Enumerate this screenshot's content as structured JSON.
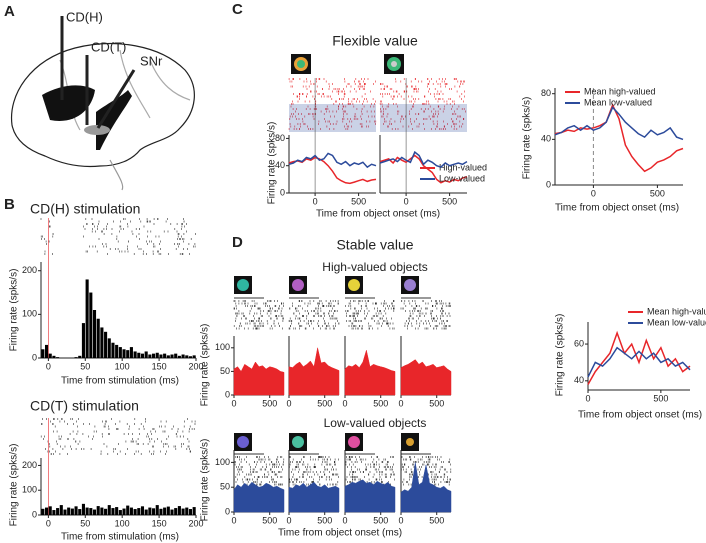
{
  "figure": {
    "panel_labels": [
      "A",
      "B",
      "C",
      "D"
    ],
    "brain_labels": [
      "CD(H)",
      "CD(T)",
      "SNr"
    ],
    "flexible_title": "Flexible value",
    "stable_title": "Stable value",
    "high_objects": "High-valued objects",
    "low_objects": "Low-valued objects"
  },
  "chart_data": [
    {
      "type": "histogram",
      "title": "CD(H) stimulation",
      "xlabel": "Time from stimulation (ms)",
      "ylabel": "Firing rate (spks/s)",
      "color": "#000000",
      "bins": [
        -10,
        -5,
        0,
        5,
        10,
        15,
        20,
        25,
        30,
        35,
        40,
        45,
        50,
        55,
        60,
        65,
        70,
        75,
        80,
        85,
        90,
        95,
        100,
        105,
        110,
        115,
        120,
        125,
        130,
        135,
        140,
        145,
        150,
        155,
        160,
        165,
        170,
        175,
        180,
        185,
        190,
        195,
        200
      ],
      "values": [
        20,
        30,
        10,
        5,
        2,
        0,
        0,
        0,
        0,
        2,
        5,
        80,
        180,
        150,
        110,
        90,
        70,
        60,
        45,
        35,
        30,
        25,
        20,
        18,
        25,
        15,
        12,
        10,
        15,
        8,
        10,
        12,
        8,
        10,
        6,
        8,
        10,
        5,
        8,
        6,
        4,
        6
      ],
      "xlim": [
        -10,
        200
      ],
      "xticks": [
        0,
        50,
        100,
        150,
        200
      ],
      "ylim": [
        0,
        220
      ],
      "yticks": [
        0,
        100,
        200
      ]
    },
    {
      "type": "histogram",
      "title": "CD(T) stimulation",
      "xlabel": "Time from stimulation (ms)",
      "ylabel": "Firing rate (spks/s)",
      "color": "#000000",
      "bins": [
        -10,
        -5,
        0,
        5,
        10,
        15,
        20,
        25,
        30,
        35,
        40,
        45,
        50,
        55,
        60,
        65,
        70,
        75,
        80,
        85,
        90,
        95,
        100,
        105,
        110,
        115,
        120,
        125,
        130,
        135,
        140,
        145,
        150,
        155,
        160,
        165,
        170,
        175,
        180,
        185,
        190,
        195,
        200
      ],
      "values": [
        25,
        30,
        35,
        20,
        28,
        40,
        22,
        30,
        26,
        35,
        24,
        45,
        30,
        28,
        22,
        36,
        30,
        25,
        40,
        28,
        32,
        20,
        26,
        38,
        30,
        24,
        28,
        35,
        22,
        30,
        27,
        40,
        25,
        30,
        34,
        22,
        28,
        36,
        26,
        30,
        24,
        32
      ],
      "xlim": [
        -10,
        200
      ],
      "xticks": [
        0,
        50,
        100,
        150,
        200
      ],
      "ylim": [
        0,
        230
      ],
      "yticks": [
        0,
        100,
        200
      ]
    },
    {
      "type": "line",
      "xlabel": "Time from object onset (ms)",
      "ylabel": "Firing rate (spks/s)",
      "x": [
        -300,
        -250,
        -200,
        -150,
        -100,
        -50,
        0,
        50,
        100,
        150,
        200,
        250,
        300,
        350,
        400,
        450,
        500,
        550,
        600,
        650,
        700
      ],
      "series": [
        {
          "color": "#e8262a",
          "values": [
            44,
            46,
            47,
            45,
            50,
            48,
            52,
            50,
            46,
            40,
            32,
            22,
            18,
            15,
            14,
            16,
            18,
            20,
            17,
            19,
            20
          ]
        },
        {
          "color": "#2c4b9b",
          "values": [
            42,
            44,
            48,
            46,
            52,
            50,
            55,
            48,
            50,
            58,
            55,
            45,
            42,
            46,
            40,
            44,
            42,
            45,
            38,
            42,
            40
          ]
        }
      ],
      "xlim": [
        -300,
        700
      ],
      "xticks": [
        0,
        500
      ],
      "ylim": [
        0,
        85
      ],
      "yticks": [
        0,
        40,
        80
      ]
    },
    {
      "type": "line",
      "x": [
        -300,
        -250,
        -200,
        -150,
        -100,
        -50,
        0,
        50,
        100,
        150,
        200,
        250,
        300,
        350,
        400,
        450,
        500,
        550,
        600,
        650,
        700
      ],
      "series": [
        {
          "name": "High-valued",
          "color": "#e8262a",
          "values": [
            46,
            48,
            50,
            44,
            52,
            48,
            45,
            50,
            55,
            50,
            40,
            35,
            30,
            20,
            15,
            18,
            16,
            20,
            18,
            22,
            24
          ]
        },
        {
          "name": "Low-valued",
          "color": "#2c4b9b",
          "values": [
            44,
            46,
            48,
            50,
            46,
            52,
            48,
            45,
            60,
            55,
            42,
            48,
            45,
            40,
            38,
            44,
            40,
            42,
            44,
            42,
            46
          ]
        }
      ],
      "xlim": [
        -300,
        700
      ],
      "xticks": [
        0,
        500
      ],
      "ylim": [
        0,
        85
      ]
    },
    {
      "type": "line",
      "xlabel": "Time from object onset (ms)",
      "ylabel": "Firing rate (spks/s)",
      "x": [
        -300,
        -250,
        -200,
        -150,
        -100,
        -50,
        0,
        50,
        100,
        150,
        200,
        250,
        300,
        350,
        400,
        450,
        500,
        550,
        600,
        650,
        700
      ],
      "series": [
        {
          "name": "Mean high-valued",
          "color": "#e8262a",
          "values": [
            45,
            46,
            48,
            47,
            50,
            49,
            50,
            52,
            55,
            70,
            58,
            35,
            25,
            18,
            12,
            15,
            20,
            22,
            25,
            30,
            32
          ]
        },
        {
          "name": "Mean low-valued",
          "color": "#2c4b9b",
          "values": [
            44,
            46,
            50,
            52,
            48,
            52,
            48,
            50,
            55,
            68,
            62,
            55,
            50,
            45,
            42,
            48,
            44,
            46,
            50,
            42,
            40
          ]
        }
      ],
      "xlim": [
        -300,
        700
      ],
      "xticks": [
        0,
        500
      ],
      "ylim": [
        0,
        85
      ],
      "yticks": [
        0,
        40,
        80
      ]
    },
    {
      "type": "area",
      "ylabel": "Firing rate (spks/s)",
      "color": "#e8262a",
      "x": [
        0,
        50,
        100,
        150,
        200,
        250,
        300,
        350,
        400,
        450,
        500,
        550,
        600,
        650,
        700
      ],
      "values": [
        55,
        60,
        50,
        65,
        60,
        55,
        70,
        60,
        62,
        55,
        60,
        58,
        55,
        50,
        48
      ],
      "xlim": [
        0,
        700
      ],
      "xticks": [
        0,
        500
      ],
      "ylim": [
        0,
        125
      ],
      "yticks": [
        0,
        50,
        100
      ]
    },
    {
      "type": "area",
      "color": "#e8262a",
      "x": [
        0,
        50,
        100,
        150,
        200,
        250,
        300,
        350,
        400,
        450,
        500,
        550,
        600,
        650,
        700
      ],
      "values": [
        60,
        58,
        65,
        70,
        60,
        65,
        72,
        60,
        100,
        68,
        70,
        62,
        58,
        55,
        52
      ],
      "xlim": [
        0,
        700
      ],
      "xticks": [
        0,
        500
      ],
      "ylim": [
        0,
        125
      ]
    },
    {
      "type": "area",
      "color": "#e8262a",
      "x": [
        0,
        50,
        100,
        150,
        200,
        250,
        300,
        350,
        400,
        450,
        500,
        550,
        600,
        650,
        700
      ],
      "values": [
        55,
        62,
        60,
        65,
        58,
        70,
        95,
        60,
        65,
        62,
        60,
        58,
        55,
        52,
        50
      ],
      "xlim": [
        0,
        700
      ],
      "xticks": [
        0,
        500
      ],
      "ylim": [
        0,
        125
      ]
    },
    {
      "type": "area",
      "color": "#e8262a",
      "x": [
        0,
        50,
        100,
        150,
        200,
        250,
        300,
        350,
        400,
        450,
        500,
        550,
        600,
        650,
        700
      ],
      "values": [
        58,
        62,
        65,
        70,
        75,
        65,
        70,
        60,
        62,
        65,
        58,
        60,
        62,
        55,
        50
      ],
      "xlim": [
        0,
        700
      ],
      "xticks": [
        0,
        500
      ],
      "ylim": [
        0,
        125
      ]
    },
    {
      "type": "area",
      "ylabel": "Firing rate (spks/s)",
      "xlabel": "Time from object onset (ms)",
      "color": "#2c4b9b",
      "x": [
        0,
        50,
        100,
        150,
        200,
        250,
        300,
        350,
        400,
        450,
        500,
        550,
        600,
        650,
        700
      ],
      "values": [
        45,
        55,
        50,
        58,
        52,
        60,
        55,
        50,
        52,
        58,
        55,
        50,
        52,
        48,
        45
      ],
      "xlim": [
        0,
        700
      ],
      "xticks": [
        0,
        500
      ],
      "ylim": [
        0,
        125
      ],
      "yticks": [
        0,
        50,
        100
      ]
    },
    {
      "type": "area",
      "color": "#2c4b9b",
      "x": [
        0,
        50,
        100,
        150,
        200,
        250,
        300,
        350,
        400,
        450,
        500,
        550,
        600,
        650,
        700
      ],
      "values": [
        50,
        48,
        55,
        52,
        58,
        50,
        55,
        60,
        52,
        50,
        55,
        48,
        50,
        52,
        48
      ],
      "xlim": [
        0,
        700
      ],
      "xticks": [
        0,
        500
      ],
      "ylim": [
        0,
        125
      ]
    },
    {
      "type": "area",
      "color": "#2c4b9b",
      "x": [
        0,
        50,
        100,
        150,
        200,
        250,
        300,
        350,
        400,
        450,
        500,
        550,
        600,
        650,
        700
      ],
      "values": [
        52,
        55,
        60,
        58,
        62,
        65,
        58,
        60,
        55,
        62,
        58,
        55,
        60,
        52,
        50
      ],
      "xlim": [
        0,
        700
      ],
      "xticks": [
        0,
        500
      ],
      "ylim": [
        0,
        125
      ]
    },
    {
      "type": "area",
      "color": "#2c4b9b",
      "x": [
        0,
        50,
        100,
        150,
        200,
        250,
        300,
        350,
        400,
        450,
        500,
        550,
        600,
        650,
        700
      ],
      "values": [
        40,
        45,
        42,
        50,
        100,
        55,
        60,
        95,
        58,
        55,
        50,
        48,
        52,
        45,
        42
      ],
      "xlim": [
        0,
        700
      ],
      "xticks": [
        0,
        500
      ],
      "ylim": [
        0,
        125
      ]
    },
    {
      "type": "line",
      "xlabel": "Time from object onset (ms)",
      "ylabel": "Firing rate (spks/s)",
      "x": [
        0,
        50,
        100,
        150,
        200,
        250,
        300,
        350,
        400,
        450,
        500,
        550,
        600,
        650,
        700
      ],
      "series": [
        {
          "name": "Mean high-valued",
          "color": "#e8262a",
          "values": [
            38,
            45,
            50,
            55,
            66,
            55,
            60,
            50,
            62,
            52,
            58,
            48,
            52,
            45,
            48
          ]
        },
        {
          "name": "Mean low-valued",
          "color": "#2c4b9b",
          "values": [
            42,
            50,
            48,
            52,
            58,
            55,
            52,
            56,
            52,
            55,
            50,
            52,
            48,
            50,
            46
          ]
        }
      ],
      "xlim": [
        0,
        700
      ],
      "xticks": [
        0,
        500
      ],
      "ylim": [
        35,
        72
      ],
      "yticks": [
        40,
        60
      ]
    }
  ]
}
